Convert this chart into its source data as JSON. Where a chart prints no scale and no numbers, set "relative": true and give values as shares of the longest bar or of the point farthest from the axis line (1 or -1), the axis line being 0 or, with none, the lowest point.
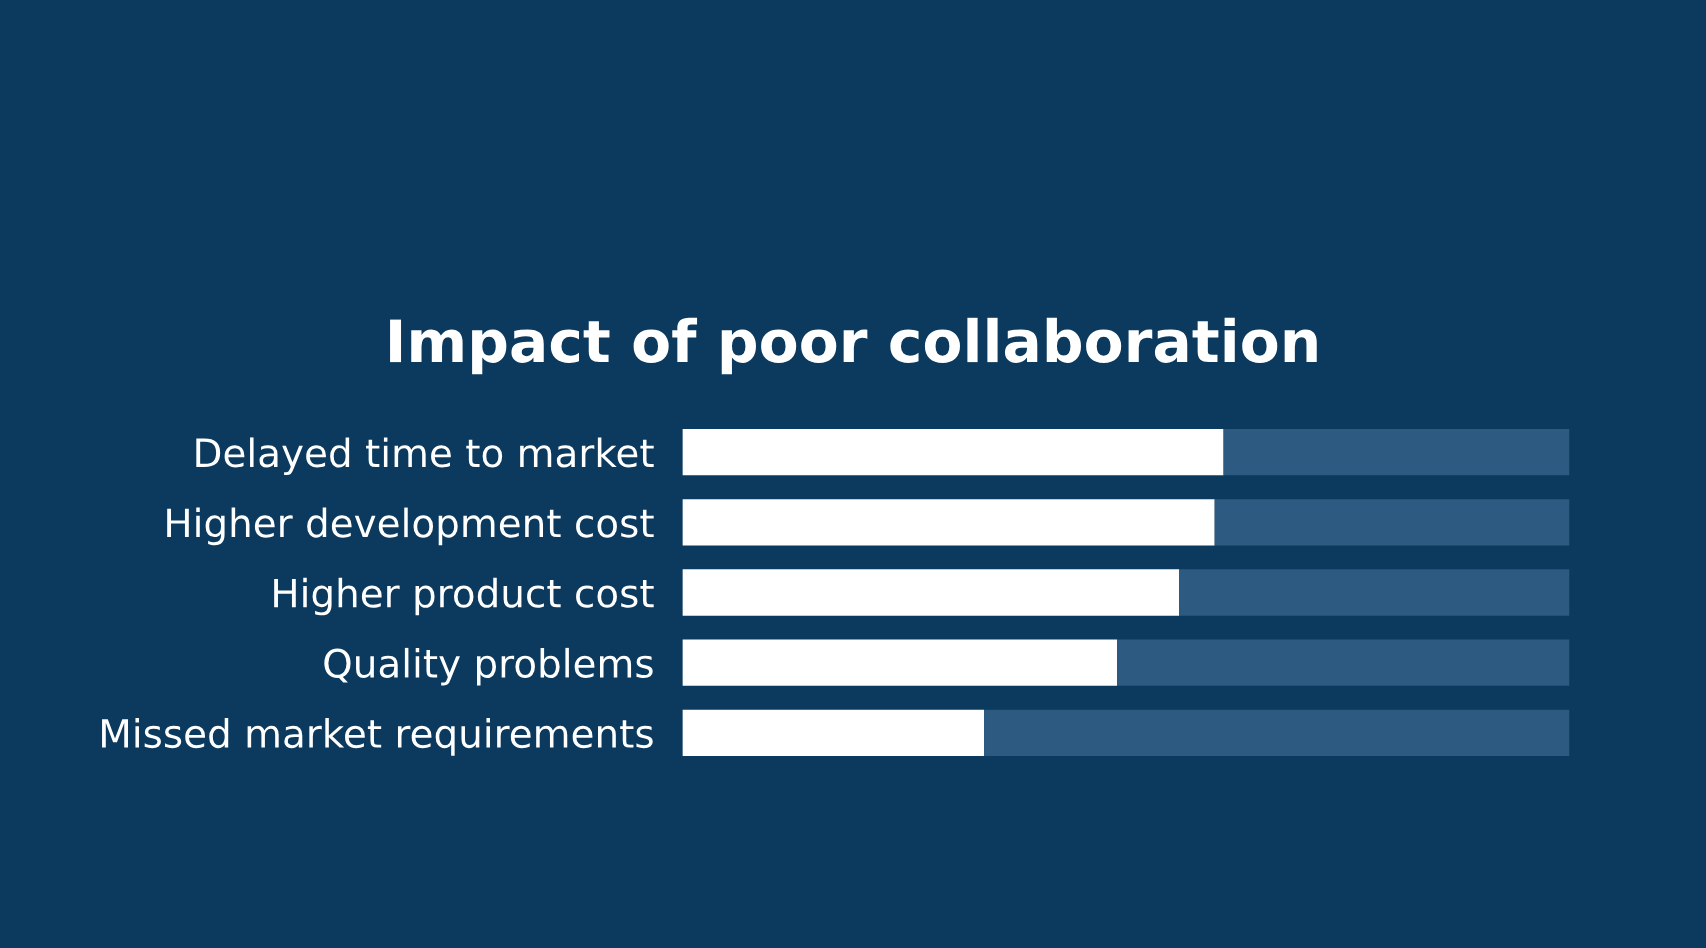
{
  "chart_data": {
    "type": "bar",
    "title": "Impact of poor collaboration",
    "orientation": "horizontal",
    "stacked": true,
    "relative": true,
    "categories": [
      "Delayed time to market",
      "Higher development cost",
      "Higher product cost",
      "Quality problems",
      "Missed market requirements"
    ],
    "series": [
      {
        "color": "#ffffff",
        "values": [
          0.61,
          0.6,
          0.56,
          0.49,
          0.34
        ]
      },
      {
        "color": "#2d5a80",
        "values": [
          0.39,
          0.4,
          0.44,
          0.51,
          0.66
        ]
      }
    ],
    "grid": false,
    "legend": false
  }
}
